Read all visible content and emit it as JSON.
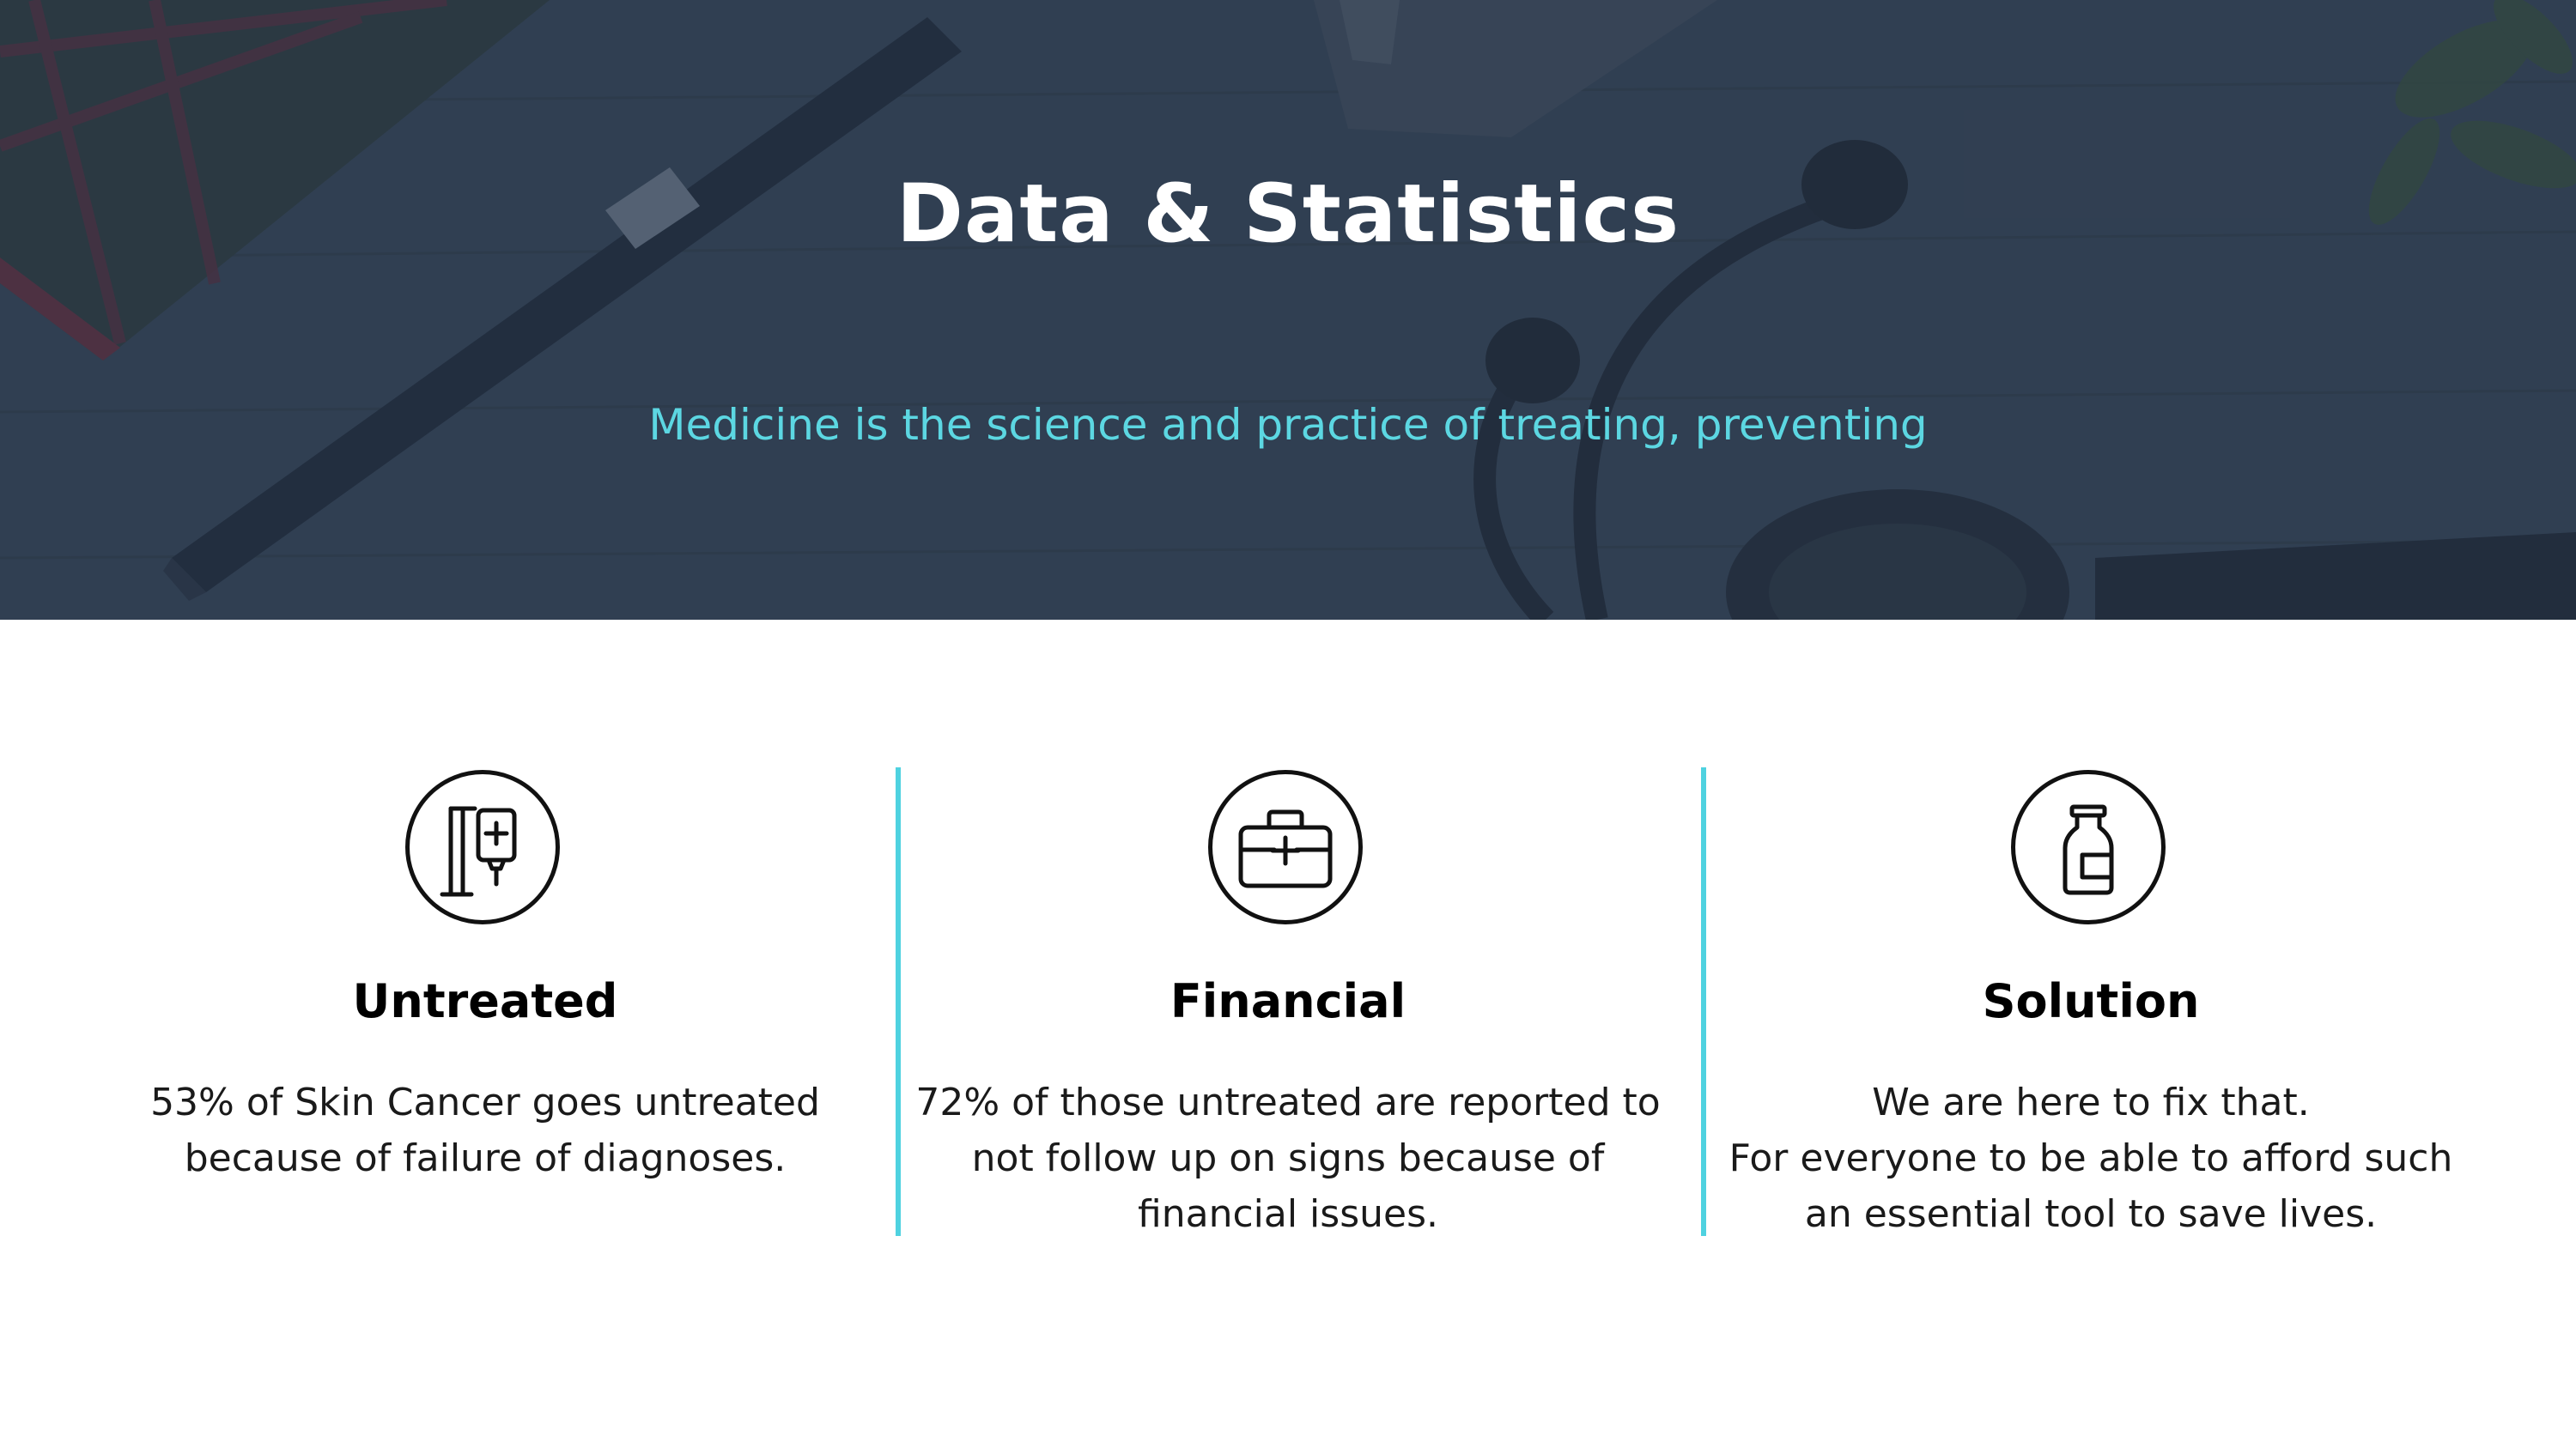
{
  "hero": {
    "title": "Data & Statistics",
    "subtitle": "Medicine is the science and practice of treating, preventing"
  },
  "colors": {
    "accent": "#5cd7e2",
    "divider": "#4fd2e0",
    "hero_overlay": "#2f3c4d",
    "text_dark": "#000000"
  },
  "features": [
    {
      "icon": "iv-drip-icon",
      "title": "Untreated",
      "lines": [
        "53% of Skin Cancer goes untreated",
        "because of failure of diagnoses."
      ]
    },
    {
      "icon": "medical-kit-icon",
      "title": "Financial",
      "lines": [
        "72% of those untreated are reported to",
        "not follow up on signs because of",
        "financial issues."
      ]
    },
    {
      "icon": "medicine-bottle-icon",
      "title": "Solution",
      "lines": [
        "We are here to fix that.",
        "For everyone to be able to afford such",
        "an essential tool to save lives."
      ]
    }
  ]
}
